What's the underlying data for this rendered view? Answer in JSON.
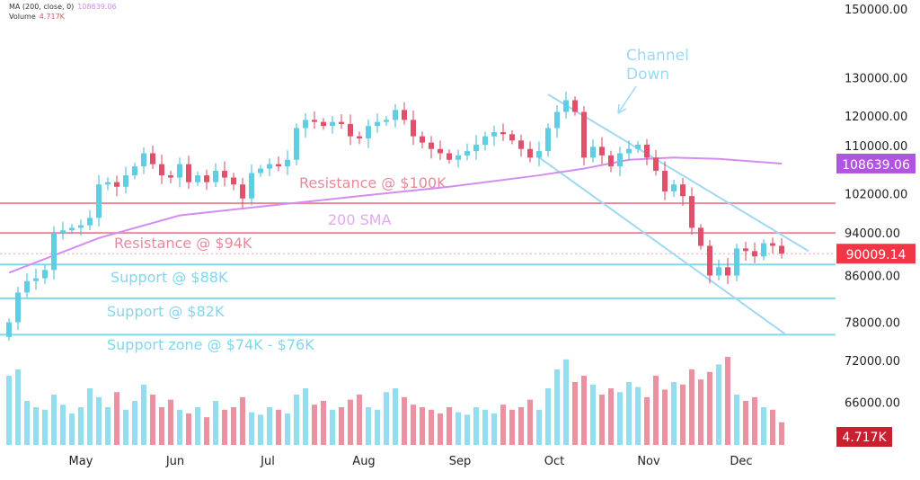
{
  "legend": {
    "ma_label": "MA (200, close, 0)",
    "ma_value": "108639.06",
    "volume_label": "Volume",
    "volume_value": "4.717K"
  },
  "chart_data": {
    "type": "candlestick",
    "title": "",
    "y_scale": "log",
    "ylim": [
      64000,
      152000
    ],
    "y_ticks": [
      150000,
      130000,
      120000,
      110000,
      102000,
      94000,
      86000,
      78000,
      72000,
      66000
    ],
    "y_tick_labels": [
      "150000.00",
      "130000.00",
      "120000.00",
      "110000.00",
      "102000.00",
      "94000.00",
      "86000.00",
      "78000.00",
      "72000.00",
      "66000.00"
    ],
    "x_ticks": [
      {
        "label": "May",
        "index": 8
      },
      {
        "label": "Jun",
        "index": 18.5
      },
      {
        "label": "Jul",
        "index": 28.8
      },
      {
        "label": "Aug",
        "index": 39.5
      },
      {
        "label": "Sep",
        "index": 50.2
      },
      {
        "label": "Oct",
        "index": 60.7
      },
      {
        "label": "Nov",
        "index": 71.2
      },
      {
        "label": "Dec",
        "index": 81.5
      }
    ],
    "closes": [
      78000,
      83000,
      85000,
      85500,
      87000,
      94000,
      94500,
      95000,
      95500,
      97000,
      104000,
      104500,
      103500,
      106000,
      108000,
      111000,
      108500,
      106000,
      105500,
      108500,
      104500,
      106000,
      104500,
      107000,
      105500,
      104000,
      101000,
      106500,
      107500,
      108500,
      108000,
      109500,
      117000,
      119000,
      118500,
      117500,
      118500,
      118000,
      115000,
      114500,
      117500,
      118500,
      119000,
      121500,
      119000,
      115000,
      113500,
      112000,
      111000,
      109500,
      110500,
      111500,
      113000,
      115000,
      116000,
      115500,
      114000,
      112000,
      110000,
      111500,
      117000,
      121000,
      124000,
      121000,
      110000,
      112500,
      110500,
      108000,
      111000,
      112000,
      113000,
      110000,
      107000,
      102500,
      104000,
      101500,
      95000,
      91500,
      86000,
      87500,
      86000,
      91000,
      90500,
      89500,
      92000,
      91500,
      90009
    ],
    "volumes": [
      55,
      60,
      35,
      30,
      28,
      40,
      32,
      25,
      30,
      45,
      38,
      30,
      42,
      28,
      35,
      48,
      40,
      30,
      36,
      28,
      25,
      30,
      22,
      35,
      28,
      30,
      38,
      26,
      24,
      30,
      28,
      25,
      40,
      45,
      32,
      35,
      28,
      30,
      36,
      40,
      30,
      28,
      42,
      45,
      38,
      32,
      30,
      28,
      25,
      30,
      26,
      24,
      30,
      28,
      25,
      32,
      28,
      30,
      36,
      28,
      45,
      60,
      68,
      50,
      55,
      48,
      40,
      45,
      42,
      50,
      46,
      38,
      55,
      44,
      50,
      48,
      60,
      52,
      58,
      64,
      70,
      40,
      35,
      38,
      30,
      28,
      18
    ],
    "ma200": {
      "name": "200 SMA",
      "points": [
        [
          0,
          86500
        ],
        [
          10,
          93000
        ],
        [
          19,
          97500
        ],
        [
          29,
          99500
        ],
        [
          39,
          101500
        ],
        [
          49,
          103500
        ],
        [
          59,
          106000
        ],
        [
          64,
          107500
        ],
        [
          69,
          109500
        ],
        [
          74,
          110000
        ],
        [
          79,
          109700
        ],
        [
          86,
          108639
        ]
      ]
    },
    "levels": [
      {
        "label": "Resistance @ $100K",
        "price": 100000,
        "color": "#e88a9c"
      },
      {
        "label": "Resistance @ $94K",
        "price": 94000,
        "color": "#e88a9c"
      },
      {
        "label": "Support @ $88K",
        "price": 88000,
        "color": "#7fd8ec"
      },
      {
        "label": "Support @ $82K",
        "price": 82000,
        "color": "#7fd8ec"
      },
      {
        "label": "Support zone @ $74K - $76K",
        "price": 76000,
        "color": "#7fd8ec"
      }
    ],
    "channel": {
      "label_line1": "Channel",
      "label_line2": "Down",
      "upper": [
        [
          60,
          125500
        ],
        [
          89,
          90500
        ]
      ],
      "lower": [
        [
          58.7,
          110500
        ],
        [
          86.5,
          76000
        ]
      ]
    },
    "sma_label": "200 SMA",
    "price_tags": [
      {
        "label": "108639.06",
        "price": 108639.06,
        "color": "#b155e0"
      },
      {
        "label": "90009.14",
        "price": 90009.14,
        "color": "#f23645"
      }
    ],
    "volume_tag": {
      "label": "4.717K",
      "color": "#c9202f"
    },
    "up_color": "#7fd8ec",
    "down_color": "#e77e92"
  }
}
